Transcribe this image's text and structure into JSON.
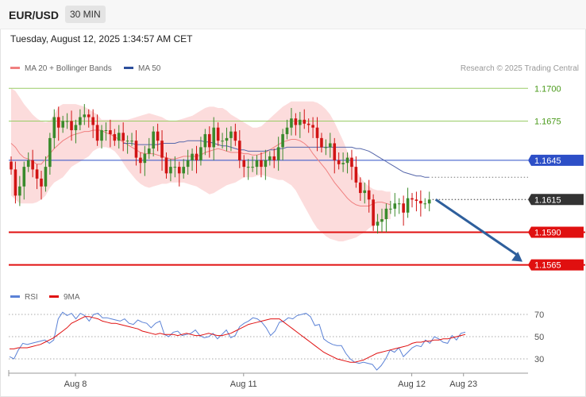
{
  "header": {
    "symbol": "EUR/USD",
    "timeframe": "30 MIN"
  },
  "timestamp": "Tuesday, August 12, 2025 1:34:57 AM CET",
  "legend": {
    "ma20_label": "MA 20 + Bollinger Bands",
    "ma50_label": "MA 50",
    "credit": "Research © 2025 Trading Central",
    "rsi_label": "RSI",
    "ma9_label": "9MA"
  },
  "colors": {
    "up": "#3a8a2c",
    "down": "#d11414",
    "ma20": "#f08080",
    "ma50": "#5566aa",
    "band_fill": "#fbd6d6",
    "resistance_green": "#9acc66",
    "price_line": "#2d4fc7",
    "support": "#e01010",
    "rsi": "#5b82d6",
    "ma9": "#e01010",
    "arrow": "#2e5f9c"
  },
  "chart_data": [
    {
      "type": "candlestick",
      "ylim": [
        1.1549,
        1.1719
      ],
      "price_levels": [
        {
          "value": 1.17,
          "label": "1.1700",
          "kind": "resistance"
        },
        {
          "value": 1.1675,
          "label": "1.1675",
          "kind": "resistance"
        },
        {
          "value": 1.1645,
          "label": "1.1645",
          "kind": "pivot"
        },
        {
          "value": 1.1615,
          "label": "1.1615",
          "kind": "current"
        },
        {
          "value": 1.159,
          "label": "1.1590",
          "kind": "support"
        },
        {
          "value": 1.1565,
          "label": "1.1565",
          "kind": "support"
        }
      ],
      "x_ticks": [
        {
          "index": 14,
          "label": "Aug 8"
        },
        {
          "index": 53,
          "label": "Aug 11"
        },
        {
          "index": 92,
          "label": "Aug 12"
        },
        {
          "index": 104,
          "label": "Aug 23"
        }
      ],
      "close": [
        1.1638,
        1.1618,
        1.1625,
        1.164,
        1.1645,
        1.1638,
        1.1631,
        1.1625,
        1.164,
        1.1662,
        1.1678,
        1.167,
        1.1675,
        1.1675,
        1.1668,
        1.1672,
        1.1678,
        1.168,
        1.1678,
        1.1672,
        1.166,
        1.1668,
        1.1668,
        1.1665,
        1.166,
        1.1666,
        1.166,
        1.166,
        1.166,
        1.1647,
        1.1643,
        1.165,
        1.1654,
        1.1667,
        1.166,
        1.1647,
        1.1635,
        1.164,
        1.164,
        1.1635,
        1.164,
        1.1645,
        1.165,
        1.1645,
        1.1655,
        1.1665,
        1.1655,
        1.167,
        1.166,
        1.166,
        1.1662,
        1.1667,
        1.166,
        1.1645,
        1.164,
        1.164,
        1.164,
        1.1645,
        1.164,
        1.1645,
        1.1648,
        1.1645,
        1.1655,
        1.1665,
        1.167,
        1.1677,
        1.1672,
        1.1676,
        1.1673,
        1.1672,
        1.167,
        1.1662,
        1.1655,
        1.1655,
        1.1658,
        1.1645,
        1.1642,
        1.1643,
        1.1647,
        1.164,
        1.1628,
        1.162,
        1.1622,
        1.1615,
        1.1595,
        1.1598,
        1.16,
        1.1608,
        1.1608,
        1.1612,
        1.1612,
        1.1605,
        1.1616,
        1.1615,
        1.1614,
        1.1612,
        1.1612,
        1.1615
      ],
      "ma20": [
        1.1658,
        1.1655,
        1.165,
        1.1647,
        1.1646,
        1.1644,
        1.1642,
        1.1642,
        1.1646,
        1.165,
        1.1654,
        1.1657,
        1.166,
        1.1662,
        1.1664,
        1.1665,
        1.1666,
        1.1667,
        1.1667,
        1.1668,
        1.1668,
        1.1668,
        1.1666,
        1.1665,
        1.1663,
        1.1661,
        1.1659,
        1.1657,
        1.1655,
        1.1653,
        1.1651,
        1.165,
        1.165,
        1.165,
        1.1649,
        1.1648,
        1.1647,
        1.1646,
        1.1646,
        1.1647,
        1.1648,
        1.1648,
        1.1648,
        1.1648,
        1.1649,
        1.1651,
        1.1652,
        1.1653,
        1.1654,
        1.1653,
        1.1652,
        1.1651,
        1.1651,
        1.1651,
        1.165,
        1.165,
        1.1649,
        1.1649,
        1.165,
        1.1651,
        1.1653,
        1.1655,
        1.1657,
        1.1659,
        1.166,
        1.1661,
        1.1661,
        1.166,
        1.1658,
        1.1655,
        1.165,
        1.1646,
        1.1642,
        1.1638,
        1.1633,
        1.1628,
        1.1624,
        1.162,
        1.1616,
        1.1613,
        1.1611,
        1.161,
        1.161,
        1.161,
        1.1612,
        1.1613,
        1.1613,
        1.1612,
        1.1611
      ],
      "ma50": [
        1.1658,
        1.1658,
        1.1658,
        1.1657,
        1.1657,
        1.1657,
        1.1657,
        1.1657,
        1.1657,
        1.1658,
        1.1658,
        1.1658,
        1.1658,
        1.1659,
        1.1659,
        1.166,
        1.166,
        1.166,
        1.166,
        1.1659,
        1.1659,
        1.1658,
        1.1657,
        1.1656,
        1.1656,
        1.1655,
        1.1654,
        1.1653,
        1.1653,
        1.1652,
        1.1652,
        1.1652,
        1.1652,
        1.1652,
        1.1653,
        1.1653,
        1.1654,
        1.1654,
        1.1655,
        1.1655,
        1.1655,
        1.1655,
        1.1655,
        1.1655,
        1.1655,
        1.1655,
        1.1655,
        1.1655,
        1.1655,
        1.1655,
        1.1655,
        1.1655,
        1.1655,
        1.1655,
        1.1654,
        1.1654,
        1.1653,
        1.1652,
        1.165,
        1.1648,
        1.1646,
        1.1644,
        1.1642,
        1.164,
        1.1638,
        1.1636,
        1.1635,
        1.1634,
        1.1633,
        1.1633,
        1.1632,
        1.1632
      ],
      "ma_start_index": 0,
      "ma20_start_index": 9,
      "ma50_start_index": 26,
      "bb_upper": [
        1.17,
        1.1698,
        1.1693,
        1.1688,
        1.1684,
        1.168,
        1.1677,
        1.1675,
        1.1674,
        1.1675,
        1.168,
        1.1686,
        1.1688,
        1.1688,
        1.1688,
        1.1688,
        1.1687,
        1.1686,
        1.1684,
        1.1682,
        1.168,
        1.1676,
        1.1676,
        1.1676,
        1.1676,
        1.1676,
        1.1676,
        1.1676,
        1.1677,
        1.1678,
        1.1679,
        1.168,
        1.1681,
        1.168,
        1.1679,
        1.1678,
        1.1676,
        1.1675,
        1.1675,
        1.1676,
        1.1677,
        1.1678,
        1.1679,
        1.1681,
        1.1683,
        1.1685,
        1.1686,
        1.1686,
        1.1685,
        1.1685,
        1.1683,
        1.168,
        1.1678,
        1.1676,
        1.1674,
        1.1672,
        1.167,
        1.167,
        1.1671,
        1.1674,
        1.1677,
        1.168,
        1.1683,
        1.1686,
        1.1688,
        1.169,
        1.169,
        1.169,
        1.169,
        1.169,
        1.169,
        1.1689,
        1.1687,
        1.1684,
        1.168,
        1.1674,
        1.1667,
        1.166,
        1.1652,
        1.1645,
        1.1638,
        1.1632,
        1.1628,
        1.1625,
        1.1623,
        1.1622,
        1.1622,
        1.1621,
        1.1621
      ],
      "bb_lower": [
        1.1618,
        1.1615,
        1.1612,
        1.1612,
        1.1612,
        1.1612,
        1.1613,
        1.1615,
        1.1618,
        1.1624,
        1.1628,
        1.163,
        1.1632,
        1.1636,
        1.164,
        1.1642,
        1.1644,
        1.1646,
        1.1648,
        1.1652,
        1.1654,
        1.1655,
        1.1655,
        1.1654,
        1.1652,
        1.1648,
        1.1643,
        1.1638,
        1.1634,
        1.163,
        1.1627,
        1.1625,
        1.1624,
        1.1625,
        1.1626,
        1.1627,
        1.1627,
        1.1628,
        1.1628,
        1.1628,
        1.1628,
        1.1627,
        1.1626,
        1.1625,
        1.1623,
        1.1621,
        1.1619,
        1.162,
        1.1622,
        1.1624,
        1.1626,
        1.1627,
        1.1628,
        1.163,
        1.1632,
        1.1632,
        1.1632,
        1.1633,
        1.1634,
        1.1633,
        1.1632,
        1.1631,
        1.163,
        1.163,
        1.1628,
        1.1626,
        1.1622,
        1.1616,
        1.161,
        1.1604,
        1.1598,
        1.1593,
        1.159,
        1.1587,
        1.1585,
        1.1584,
        1.1583,
        1.1583,
        1.1584,
        1.1585,
        1.1586,
        1.1588,
        1.159,
        1.1593,
        1.1595,
        1.1597,
        1.1598,
        1.16,
        1.16
      ],
      "forecast": {
        "from": 1.1615,
        "to": 1.1565
      }
    },
    {
      "type": "line",
      "indicator": "RSI",
      "ylim": [
        20,
        80
      ],
      "y_ticks": [
        {
          "value": 70,
          "label": "70"
        },
        {
          "value": 50,
          "label": "50"
        },
        {
          "value": 30,
          "label": "30"
        }
      ],
      "rsi": [
        32,
        30,
        38,
        44,
        43,
        44,
        45,
        46,
        47,
        44,
        47,
        66,
        72,
        69,
        71,
        66,
        71,
        69,
        64,
        70,
        71,
        67,
        67,
        66,
        65,
        64,
        66,
        62,
        61,
        65,
        63,
        62,
        58,
        62,
        64,
        52,
        50,
        54,
        55,
        51,
        52,
        53,
        56,
        51,
        49,
        50,
        53,
        48,
        52,
        56,
        49,
        51,
        59,
        62,
        64,
        67,
        66,
        63,
        58,
        51,
        55,
        63,
        64,
        67,
        66,
        69,
        70,
        71,
        68,
        60,
        61,
        48,
        45,
        43,
        42,
        42,
        35,
        30,
        27,
        26,
        27,
        26,
        25,
        20,
        24,
        30,
        38,
        36,
        40,
        32,
        36,
        40,
        42,
        41,
        47,
        44,
        50,
        48,
        45,
        44,
        51,
        47,
        53,
        54
      ],
      "ma9": [
        39,
        39,
        40,
        40,
        40,
        41,
        42,
        43,
        45,
        47,
        49,
        52,
        55,
        58,
        62,
        64,
        66,
        68,
        68,
        67,
        66,
        64,
        63,
        62,
        62,
        61,
        60,
        59,
        58,
        57,
        55,
        54,
        53,
        52,
        53,
        52,
        52,
        52,
        51,
        52,
        53,
        52,
        51,
        51,
        52,
        53,
        52,
        51,
        51,
        52,
        53,
        55,
        57,
        59,
        61,
        62,
        63,
        64,
        65,
        66,
        66,
        66,
        63,
        60,
        57,
        54,
        51,
        48,
        45,
        42,
        39,
        36,
        34,
        32,
        30,
        29,
        28,
        27,
        27,
        28,
        29,
        31,
        33,
        35,
        36,
        37,
        38,
        39,
        40,
        41,
        42,
        44,
        45,
        45,
        46,
        46,
        47,
        47,
        48,
        48,
        49,
        50,
        51,
        52
      ]
    }
  ]
}
